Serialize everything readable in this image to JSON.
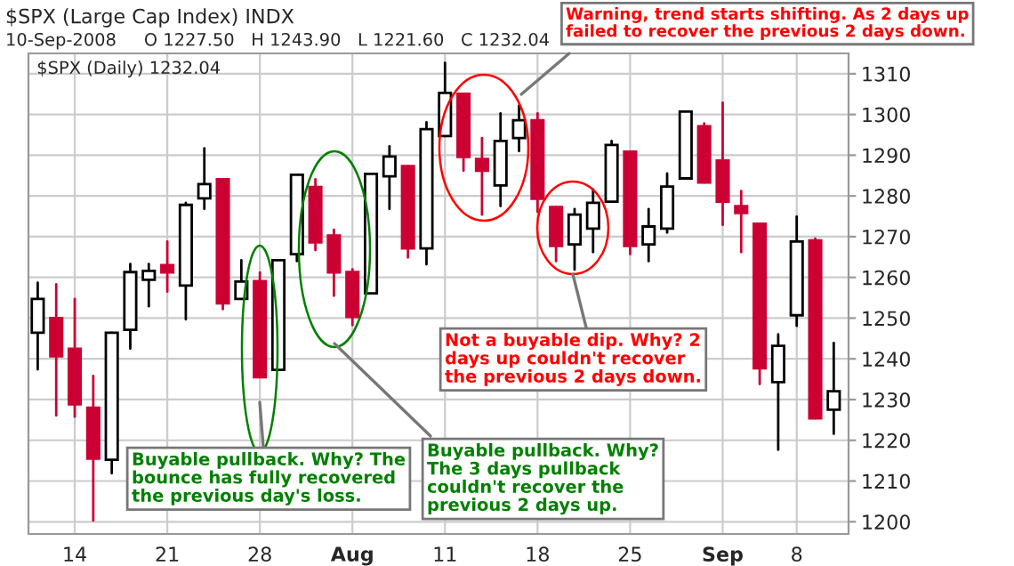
{
  "chart_data": {
    "type": "candlestick",
    "title": "$SPX (Large Cap Index) INDX",
    "subtitle": "10-Sep-2008     O 1227.50   H 1243.90   L 1221.60   C 1232.04",
    "categories": [
      null,
      null,
      "14",
      null,
      null,
      null,
      null,
      "21",
      null,
      null,
      null,
      null,
      "28",
      null,
      null,
      null,
      null,
      "Aug",
      null,
      null,
      null,
      null,
      "11",
      null,
      null,
      null,
      null,
      "18",
      null,
      null,
      null,
      null,
      "25",
      null,
      null,
      null,
      null,
      "Sep",
      null,
      null,
      null,
      "8",
      null,
      null
    ],
    "ohlc": [
      [
        1246.4,
        1258.7,
        1237.4,
        1254.7
      ],
      [
        1250.0,
        1258.3,
        1226.1,
        1240.6
      ],
      [
        1242.5,
        1254.7,
        1225.8,
        1228.8
      ],
      [
        1228.0,
        1235.8,
        1200.3,
        1215.5
      ],
      [
        1215.2,
        1246.4,
        1211.9,
        1246.4
      ],
      [
        1247.1,
        1263.3,
        1242.5,
        1261.3
      ],
      [
        1259.4,
        1263.3,
        1252.9,
        1261.6
      ],
      [
        1263.0,
        1268.8,
        1256.5,
        1261.2
      ],
      [
        1258.0,
        1278.3,
        1249.7,
        1277.8
      ],
      [
        1279.4,
        1291.7,
        1276.8,
        1282.9
      ],
      [
        1284.1,
        1284.1,
        1252.2,
        1253.6
      ],
      [
        1254.7,
        1264.2,
        1254.7,
        1259.0
      ],
      [
        1259.1,
        1261.2,
        1235.5,
        1235.5
      ],
      [
        1237.3,
        1264.2,
        1237.3,
        1264.2
      ],
      [
        1265.7,
        1285.2,
        1264.0,
        1285.2
      ],
      [
        1282.2,
        1284.1,
        1266.7,
        1268.6
      ],
      [
        1270.3,
        1271.7,
        1255.5,
        1261.2
      ],
      [
        1261.3,
        1262.0,
        1248.3,
        1250.3
      ],
      [
        1256.1,
        1285.4,
        1256.1,
        1285.4
      ],
      [
        1284.8,
        1292.2,
        1276.8,
        1289.7
      ],
      [
        1287.3,
        1287.3,
        1264.9,
        1267.1
      ],
      [
        1267.1,
        1298.1,
        1263.2,
        1296.4
      ],
      [
        1294.7,
        1312.7,
        1294.7,
        1305.3
      ],
      [
        1305.1,
        1305.1,
        1286.2,
        1289.6
      ],
      [
        1289.1,
        1294.2,
        1275.4,
        1286.2
      ],
      [
        1282.6,
        1300.3,
        1277.5,
        1293.5
      ],
      [
        1294.2,
        1302.2,
        1291.0,
        1298.6
      ],
      [
        1298.6,
        1300.3,
        1276.1,
        1279.3
      ],
      [
        1277.3,
        1277.3,
        1264.0,
        1267.7
      ],
      [
        1268.1,
        1276.8,
        1261.9,
        1275.4
      ],
      [
        1272.0,
        1281.6,
        1266.2,
        1278.3
      ],
      [
        1278.6,
        1293.5,
        1278.6,
        1292.5
      ],
      [
        1290.9,
        1290.9,
        1265.7,
        1267.7
      ],
      [
        1268.1,
        1276.8,
        1264.0,
        1272.5
      ],
      [
        1272.0,
        1285.5,
        1271.0,
        1282.3
      ],
      [
        1284.3,
        1300.7,
        1284.3,
        1300.7
      ],
      [
        1297.1,
        1297.8,
        1283.3,
        1283.3
      ],
      [
        1288.7,
        1302.9,
        1272.9,
        1278.6
      ],
      [
        1277.5,
        1281.2,
        1266.2,
        1275.8
      ],
      [
        1273.2,
        1273.2,
        1233.8,
        1237.7
      ],
      [
        1234.3,
        1246.0,
        1217.7,
        1243.2
      ],
      [
        1250.7,
        1274.9,
        1248.1,
        1268.8
      ],
      [
        1269.1,
        1269.5,
        1225.4,
        1225.4
      ],
      [
        1227.5,
        1243.9,
        1221.6,
        1232.04
      ]
    ],
    "colors": [
      "#ffffff",
      "#cc0033",
      "#cc0033",
      "#cc0033",
      "#ffffff",
      "#ffffff",
      "#ffffff",
      "#cc0033",
      "#ffffff",
      "#ffffff",
      "#cc0033",
      "#ffffff",
      "#cc0033",
      "#ffffff",
      "#ffffff",
      "#cc0033",
      "#cc0033",
      "#cc0033",
      "#ffffff",
      "#ffffff",
      "#cc0033",
      "#ffffff",
      "#ffffff",
      "#cc0033",
      "#cc0033",
      "#ffffff",
      "#ffffff",
      "#cc0033",
      "#cc0033",
      "#ffffff",
      "#ffffff",
      "#ffffff",
      "#cc0033",
      "#ffffff",
      "#ffffff",
      "#ffffff",
      "#cc0033",
      "#cc0033",
      "#cc0033",
      "#cc0033",
      "#ffffff",
      "#ffffff",
      "#cc0033",
      "#ffffff"
    ],
    "ylim": [
      1197,
      1315
    ],
    "yticks": [
      1200,
      1210,
      1220,
      1230,
      1240,
      1250,
      1260,
      1270,
      1280,
      1290,
      1300,
      1310
    ],
    "grid": true,
    "annotations": [
      "$SPX (Daily) 1232.04",
      "Warning, trend starts shifting. As 2 days up\nfailed to recover the previous 2 days down.",
      "Not a buyable dip. Why? 2\ndays up couldn't recover\nthe previous 2 days down.",
      "Buyable pullback. Why? The\nbounce has fully recovered\nthe previous day's loss.",
      "Buyable pullback. Why?\nThe 3 days pullback\ncouldn't recover the\nprevious 2 days up."
    ]
  }
}
